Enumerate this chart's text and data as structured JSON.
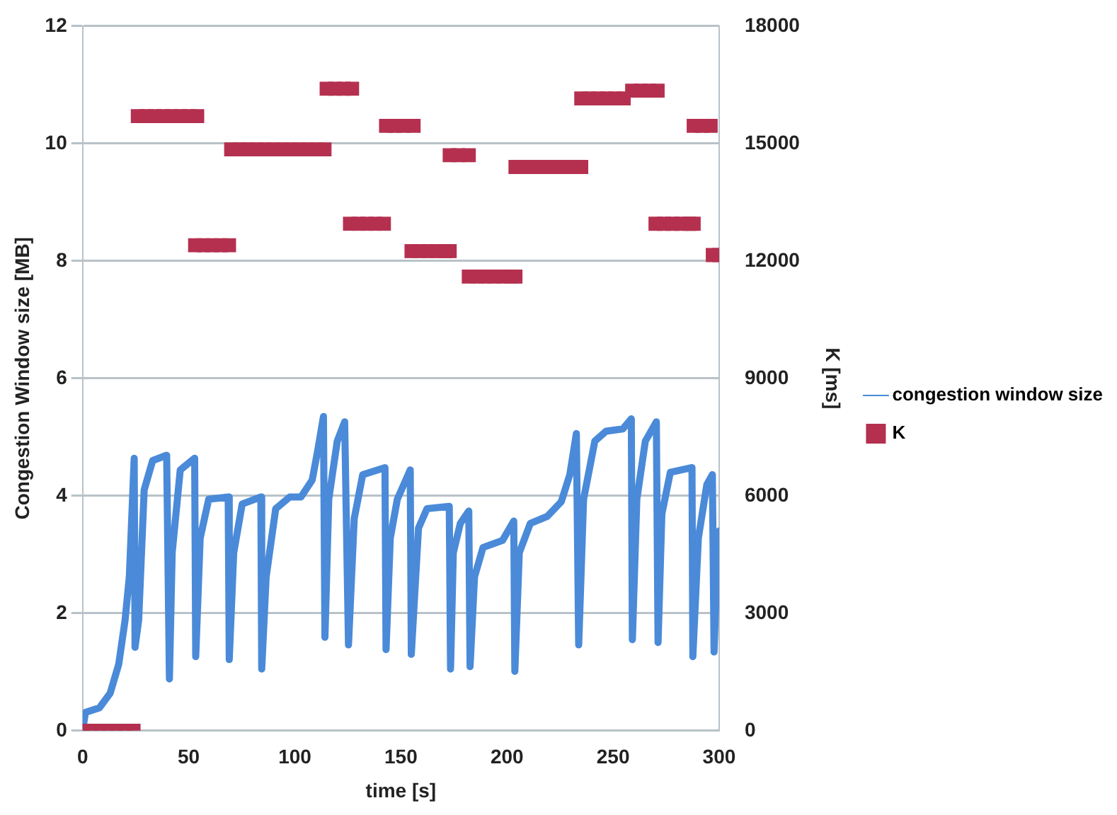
{
  "chart_data": {
    "type": "line",
    "xlabel": "time [s]",
    "ylabel": "Congestion Window size [MB]",
    "y2label": "K [ms]",
    "xlim": [
      0,
      300
    ],
    "xticks": [
      0,
      50,
      100,
      150,
      200,
      250,
      300
    ],
    "ylim": [
      0,
      12
    ],
    "yticks": [
      0,
      2,
      4,
      6,
      8,
      10,
      12
    ],
    "y2lim": [
      0,
      18000
    ],
    "y2ticks": [
      0,
      3000,
      6000,
      9000,
      12000,
      15000,
      18000
    ],
    "grid": "y",
    "legend": "right",
    "series": [
      {
        "name": "congestion window size",
        "type": "line",
        "color": "#4a8ad8",
        "line_style": "solid",
        "x": [
          0,
          1.3,
          7.9,
          13,
          17,
          20,
          22,
          24.3,
          24.7,
          26.4,
          29,
          33,
          39.6,
          40.9,
          42.2,
          46,
          52.8,
          53.3,
          55.4,
          59.4,
          68.6,
          69.1,
          71.2,
          75.2,
          84,
          84.4,
          86.5,
          91,
          97.6,
          102.9,
          108.2,
          110.8,
          113.5,
          114.2,
          116,
          120,
          123.5,
          125.3,
          128,
          132,
          142.5,
          143,
          145,
          148.3,
          154.4,
          154.9,
          158.3,
          162.3,
          172.8,
          173.4,
          174.7,
          178,
          182,
          182.6,
          184.7,
          188.7,
          197.9,
          203.2,
          203.7,
          205.8,
          211,
          219,
          225.6,
          229.6,
          232.7,
          233.8,
          236.1,
          241.4,
          246.7,
          254.6,
          258.6,
          259.1,
          261.2,
          265.2,
          270.4,
          271.2,
          273,
          277,
          287.2,
          287.6,
          290.2,
          294.2,
          296.8,
          297.6,
          299.5,
          300
        ],
        "values": [
          0,
          0.31,
          0.39,
          0.64,
          1.13,
          1.88,
          2.62,
          4.64,
          1.42,
          1.88,
          4.1,
          4.6,
          4.69,
          0.88,
          3.03,
          4.44,
          4.64,
          1.26,
          3.28,
          3.94,
          3.98,
          1.21,
          3.03,
          3.86,
          3.98,
          1.05,
          2.62,
          3.78,
          3.98,
          3.98,
          4.27,
          4.77,
          5.35,
          1.59,
          3.94,
          4.93,
          5.26,
          1.46,
          3.61,
          4.36,
          4.48,
          1.38,
          3.28,
          3.94,
          4.44,
          1.3,
          3.45,
          3.78,
          3.82,
          1.05,
          3.03,
          3.53,
          3.74,
          1.09,
          2.62,
          3.12,
          3.24,
          3.57,
          1.01,
          3.03,
          3.53,
          3.65,
          3.9,
          4.36,
          5.06,
          1.46,
          3.94,
          4.93,
          5.1,
          5.14,
          5.31,
          1.55,
          3.94,
          4.93,
          5.26,
          1.5,
          3.69,
          4.4,
          4.48,
          1.26,
          3.28,
          4.19,
          4.36,
          1.34,
          3.28,
          3.4
        ]
      },
      {
        "name": "K",
        "type": "scatter",
        "axis": "y2",
        "color": "#b5304f",
        "marker": "square",
        "x": [
          0,
          4,
          8,
          12,
          16,
          20,
          24,
          26,
          30,
          34,
          38,
          42,
          46,
          50,
          54,
          53,
          57,
          61,
          65,
          69,
          70,
          74,
          78,
          82,
          86,
          90,
          94,
          98,
          102,
          106,
          110,
          114,
          115,
          119,
          123,
          127,
          126,
          130,
          134,
          138,
          142,
          143,
          147,
          151,
          156,
          155,
          159,
          163,
          167,
          171,
          173,
          173,
          177,
          182,
          182,
          186,
          190,
          194,
          198,
          202,
          204,
          204,
          208,
          212,
          216,
          220,
          224,
          228,
          232,
          235,
          235,
          239,
          243,
          247,
          251,
          255,
          259,
          263,
          267,
          271,
          270,
          274,
          278,
          282,
          286,
          288,
          288,
          292,
          296,
          297,
          300
        ],
        "values": [
          0,
          0,
          0,
          0,
          0,
          0,
          0,
          15700,
          15700,
          15700,
          15700,
          15700,
          15700,
          15700,
          15700,
          12400,
          12400,
          12400,
          12400,
          12400,
          14850,
          14850,
          14850,
          14850,
          14850,
          14850,
          14850,
          14850,
          14850,
          14850,
          14850,
          14850,
          16400,
          16400,
          16400,
          16400,
          12950,
          12950,
          12950,
          12950,
          12950,
          15450,
          15450,
          15450,
          15450,
          12250,
          12250,
          12250,
          12250,
          12250,
          12250,
          14700,
          14700,
          14700,
          11600,
          11600,
          11600,
          11600,
          11600,
          11600,
          11600,
          14400,
          14400,
          14400,
          14400,
          14400,
          14400,
          14400,
          14400,
          14400,
          16150,
          16150,
          16150,
          16150,
          16150,
          16150,
          16350,
          16350,
          16350,
          16350,
          12950,
          12950,
          12950,
          12950,
          12950,
          12950,
          15450,
          15450,
          15450,
          12150,
          12150
        ]
      }
    ]
  }
}
